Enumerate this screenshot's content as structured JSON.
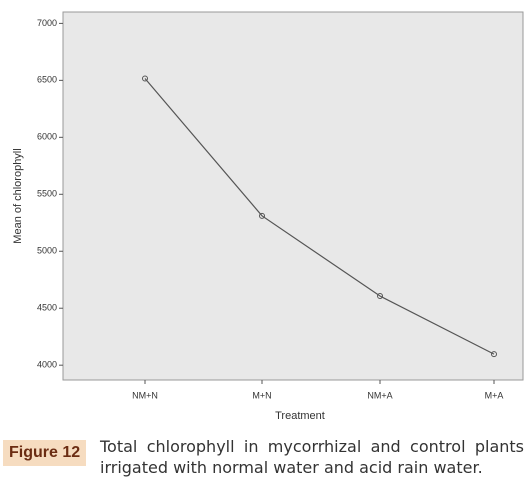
{
  "chart_data": {
    "type": "line",
    "categories": [
      "NM+N",
      "M+N",
      "NM+A",
      "M+A"
    ],
    "series": [
      {
        "name": "Mean of chlorophyll",
        "color": "#555555",
        "values": [
          6516,
          5311,
          4607,
          4097
        ]
      }
    ],
    "ylim": [
      3870,
      7100
    ],
    "yticks": [
      4000,
      4500,
      5000,
      5500,
      6000,
      6500,
      7000
    ],
    "y_label": "Mean of chlorophyll",
    "x_label": "Treatment"
  },
  "caption": {
    "label": "Figure 12",
    "text": "Total chlorophyll in mycorrhizal and control plants irrigated with normal water and acid rain water."
  }
}
